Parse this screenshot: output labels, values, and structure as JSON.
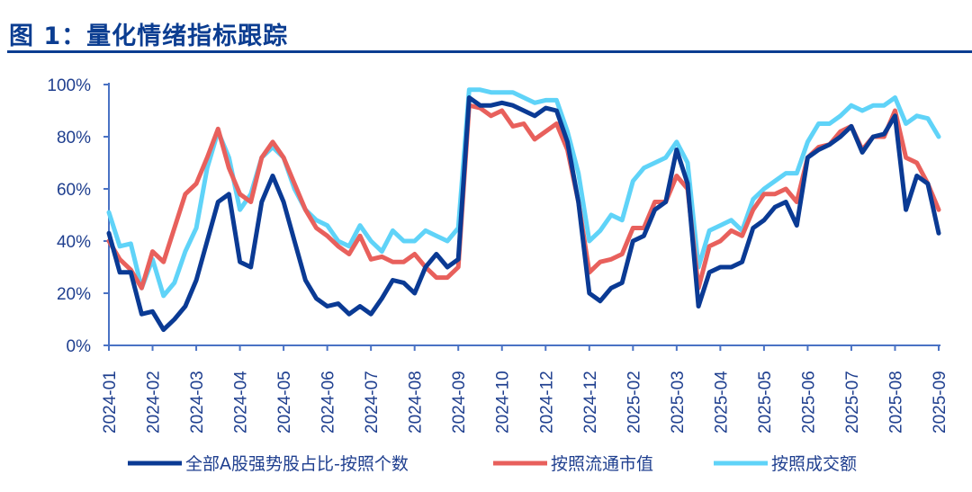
{
  "figure_title": "图 1：量化情绪指标跟踪",
  "colors": {
    "title": "#0b3d91",
    "axis": "#4a72c4",
    "series": [
      "#0a3a94",
      "#e8605c",
      "#5fd3f8"
    ]
  },
  "chart_data": {
    "type": "line",
    "title": "",
    "xlabel": "",
    "ylabel": "",
    "ylim": [
      0,
      100
    ],
    "y_ticks": [
      "0%",
      "20%",
      "40%",
      "60%",
      "80%",
      "100%"
    ],
    "y_tick_values": [
      0,
      20,
      40,
      60,
      80,
      100
    ],
    "x_tick_labels": [
      "2024-01",
      "2024-02",
      "2024-03",
      "2024-04",
      "2024-05",
      "2024-06",
      "2024-07",
      "2024-08",
      "2024-09",
      "2024-10",
      "2024-12",
      "2024-12",
      "2025-02",
      "2025-03",
      "2025-04",
      "2025-05",
      "2025-06",
      "2025-07",
      "2025-08",
      "2025-09"
    ],
    "grid": false,
    "legend_position": "bottom",
    "sampling": "4 evenly spaced points per x tick interval, from first to last tick",
    "series": [
      {
        "name": "全部A股强势股占比-按照个数",
        "values": [
          43,
          28,
          28,
          12,
          13,
          6,
          10,
          15,
          25,
          40,
          55,
          58,
          32,
          30,
          55,
          65,
          55,
          40,
          25,
          18,
          15,
          16,
          12,
          15,
          12,
          18,
          25,
          24,
          20,
          30,
          35,
          30,
          33,
          95,
          92,
          92,
          93,
          92,
          90,
          88,
          91,
          90,
          78,
          55,
          20,
          17,
          22,
          24,
          40,
          42,
          52,
          55,
          75,
          62,
          15,
          28,
          30,
          30,
          32,
          45,
          48,
          53,
          55,
          46,
          72,
          75,
          77,
          80,
          84,
          74,
          80,
          81,
          88,
          52,
          65,
          62,
          43
        ]
      },
      {
        "name": "按照流通市值",
        "values": [
          40,
          33,
          29,
          22,
          36,
          32,
          45,
          58,
          62,
          72,
          83,
          68,
          58,
          55,
          72,
          78,
          72,
          62,
          52,
          45,
          42,
          38,
          35,
          42,
          33,
          34,
          32,
          32,
          35,
          30,
          26,
          26,
          30,
          92,
          91,
          88,
          90,
          84,
          85,
          79,
          82,
          85,
          75,
          55,
          28,
          32,
          33,
          35,
          45,
          45,
          55,
          55,
          65,
          60,
          22,
          38,
          40,
          44,
          42,
          52,
          58,
          58,
          60,
          55,
          72,
          76,
          77,
          82,
          84,
          75,
          80,
          80,
          90,
          72,
          70,
          62,
          52
        ]
      },
      {
        "name": "按照成交额",
        "values": [
          51,
          38,
          39,
          22,
          33,
          19,
          24,
          36,
          45,
          68,
          82,
          72,
          52,
          58,
          72,
          76,
          72,
          60,
          52,
          48,
          46,
          40,
          38,
          46,
          40,
          36,
          44,
          40,
          40,
          44,
          42,
          40,
          45,
          98,
          98,
          97,
          97,
          97,
          95,
          93,
          94,
          94,
          82,
          66,
          40,
          44,
          50,
          48,
          63,
          68,
          70,
          72,
          78,
          70,
          30,
          44,
          46,
          48,
          44,
          56,
          60,
          63,
          66,
          66,
          78,
          85,
          85,
          88,
          92,
          90,
          92,
          92,
          95,
          85,
          88,
          87,
          80
        ]
      }
    ]
  }
}
